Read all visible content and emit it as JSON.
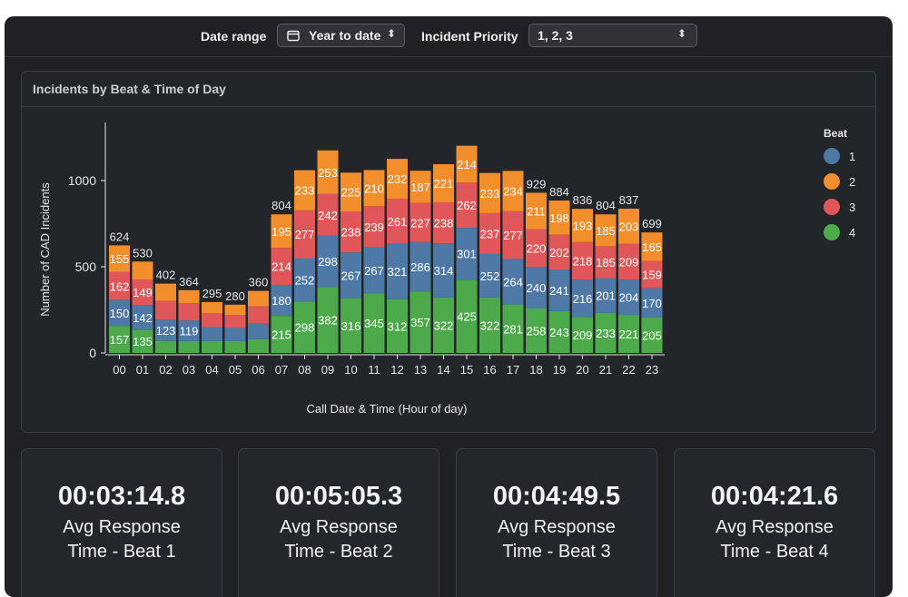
{
  "filters": {
    "date_range_label": "Date range",
    "date_range_value": "Year to date",
    "priority_label": "Incident Priority",
    "priority_value": "1, 2, 3"
  },
  "chart_data": {
    "type": "bar",
    "stacked": true,
    "title": "Incidents by Beat & Time of Day",
    "xlabel": "Call Date & Time (Hour of day)",
    "ylabel": "Number of CAD Incidents",
    "ylim": [
      0,
      1300
    ],
    "yticks": [
      0,
      500,
      1000
    ],
    "legend_title": "Beat",
    "legend_position": "right",
    "categories": [
      "00",
      "01",
      "02",
      "03",
      "04",
      "05",
      "06",
      "07",
      "08",
      "09",
      "10",
      "11",
      "12",
      "13",
      "14",
      "15",
      "16",
      "17",
      "18",
      "19",
      "20",
      "21",
      "22",
      "23"
    ],
    "totals": [
      624,
      530,
      402,
      364,
      295,
      280,
      360,
      804,
      null,
      null,
      null,
      null,
      null,
      null,
      null,
      null,
      null,
      null,
      929,
      884,
      836,
      804,
      837,
      699
    ],
    "series": [
      {
        "name": "4",
        "color": "#4caa4b",
        "values": [
          157,
          135,
          70,
          70,
          70,
          70,
          80,
          215,
          298,
          382,
          316,
          345,
          312,
          357,
          322,
          425,
          322,
          281,
          258,
          243,
          209,
          233,
          221,
          205
        ],
        "labels": [
          true,
          true,
          false,
          false,
          false,
          false,
          false,
          true,
          true,
          true,
          true,
          true,
          true,
          true,
          true,
          true,
          true,
          true,
          true,
          true,
          true,
          true,
          true,
          true
        ]
      },
      {
        "name": "1",
        "color": "#4e79a7",
        "values": [
          150,
          142,
          123,
          119,
          80,
          75,
          90,
          180,
          252,
          298,
          267,
          267,
          321,
          286,
          314,
          301,
          252,
          264,
          240,
          241,
          216,
          201,
          204,
          170
        ],
        "labels": [
          true,
          true,
          true,
          true,
          false,
          false,
          false,
          true,
          true,
          true,
          true,
          true,
          true,
          true,
          true,
          true,
          true,
          true,
          true,
          true,
          true,
          true,
          true,
          true
        ]
      },
      {
        "name": "3",
        "color": "#e15759",
        "values": [
          162,
          149,
          110,
          100,
          80,
          75,
          100,
          214,
          277,
          242,
          238,
          239,
          261,
          227,
          238,
          262,
          237,
          277,
          220,
          202,
          218,
          185,
          209,
          159
        ],
        "labels": [
          true,
          true,
          false,
          false,
          false,
          false,
          false,
          true,
          true,
          true,
          true,
          true,
          true,
          true,
          true,
          true,
          true,
          true,
          true,
          true,
          true,
          true,
          true,
          true
        ]
      },
      {
        "name": "2",
        "color": "#f28e2b",
        "values": [
          155,
          104,
          99,
          75,
          65,
          60,
          90,
          195,
          233,
          253,
          225,
          210,
          232,
          187,
          221,
          214,
          233,
          234,
          211,
          198,
          193,
          185,
          203,
          165
        ],
        "labels": [
          true,
          false,
          false,
          false,
          false,
          false,
          false,
          true,
          true,
          true,
          true,
          true,
          true,
          true,
          true,
          true,
          true,
          true,
          true,
          true,
          true,
          true,
          true,
          true
        ]
      }
    ]
  },
  "stats": [
    {
      "value": "00:03:14.8",
      "label": "Avg Response Time - Beat 1"
    },
    {
      "value": "00:05:05.3",
      "label": "Avg Response Time - Beat 2"
    },
    {
      "value": "00:04:49.5",
      "label": "Avg Response Time - Beat 3"
    },
    {
      "value": "00:04:21.6",
      "label": "Avg Response Time - Beat 4"
    }
  ]
}
